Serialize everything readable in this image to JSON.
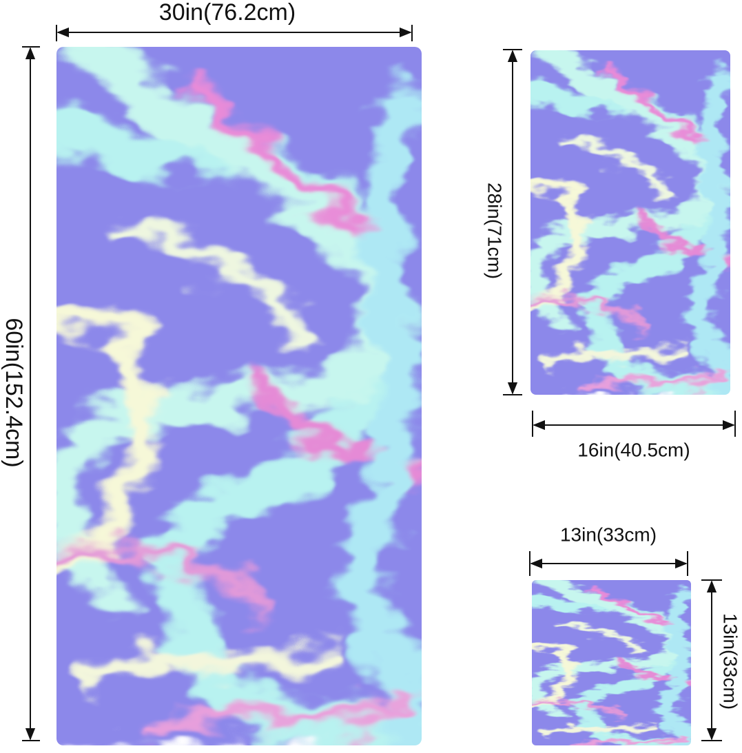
{
  "towels": [
    {
      "width_label": "30in(76.2cm)",
      "height_label": "60in(152.4cm)"
    },
    {
      "height_label": "28in(71cm)",
      "width_label": "16in(40.5cm)"
    },
    {
      "width_label": "13in(33cm)",
      "height_label": "13in(33cm)"
    }
  ]
}
